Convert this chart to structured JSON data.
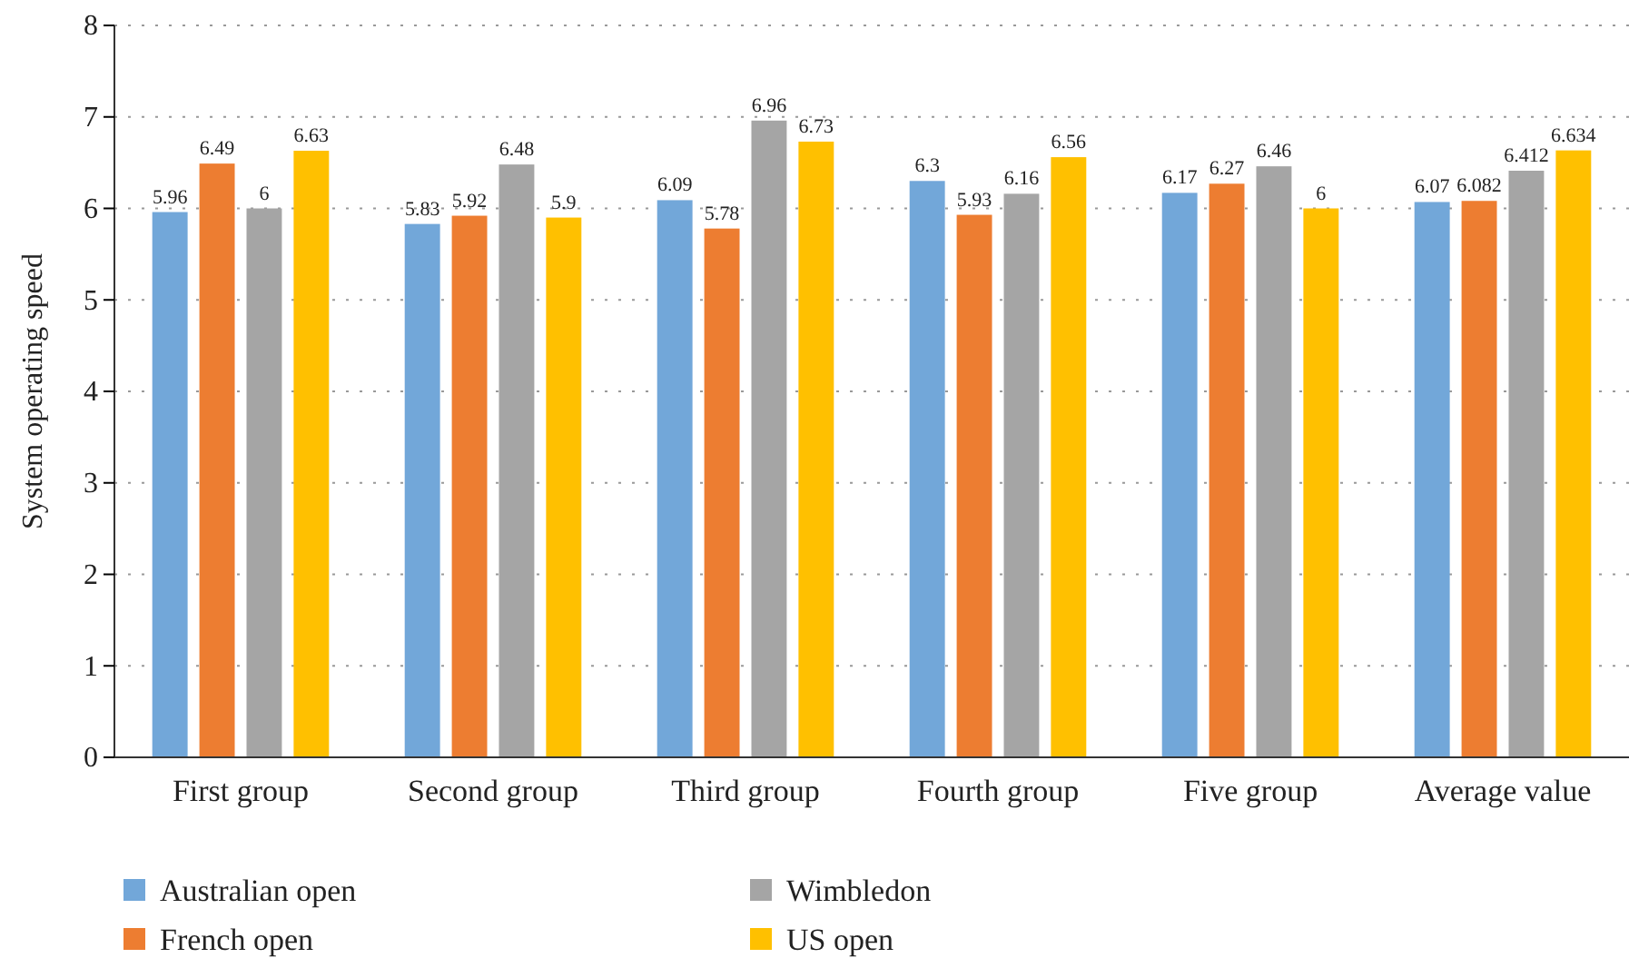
{
  "chart_data": {
    "type": "bar",
    "ylabel": "System operating speed",
    "categories": [
      "First group",
      "Second group",
      "Third group",
      "Fourth group",
      "Five group",
      "Average value"
    ],
    "series": [
      {
        "name": "Australian open",
        "color": "#72a7d9",
        "values": [
          5.96,
          5.83,
          6.09,
          6.3,
          6.17,
          6.07
        ]
      },
      {
        "name": "French open",
        "color": "#ed7d31",
        "values": [
          6.49,
          5.92,
          5.78,
          5.93,
          6.27,
          6.082
        ]
      },
      {
        "name": "Wimbledon",
        "color": "#a5a5a5",
        "values": [
          6,
          6.48,
          6.96,
          6.16,
          6.46,
          6.412
        ]
      },
      {
        "name": "US open",
        "color": "#ffc000",
        "values": [
          6.63,
          5.9,
          6.73,
          6.56,
          6,
          6.634
        ]
      }
    ],
    "ylim": [
      0,
      8
    ],
    "yticks": [
      0,
      1,
      2,
      3,
      4,
      5,
      6,
      7,
      8
    ],
    "grid": "y",
    "data_labels": true,
    "legend": "bottom"
  }
}
